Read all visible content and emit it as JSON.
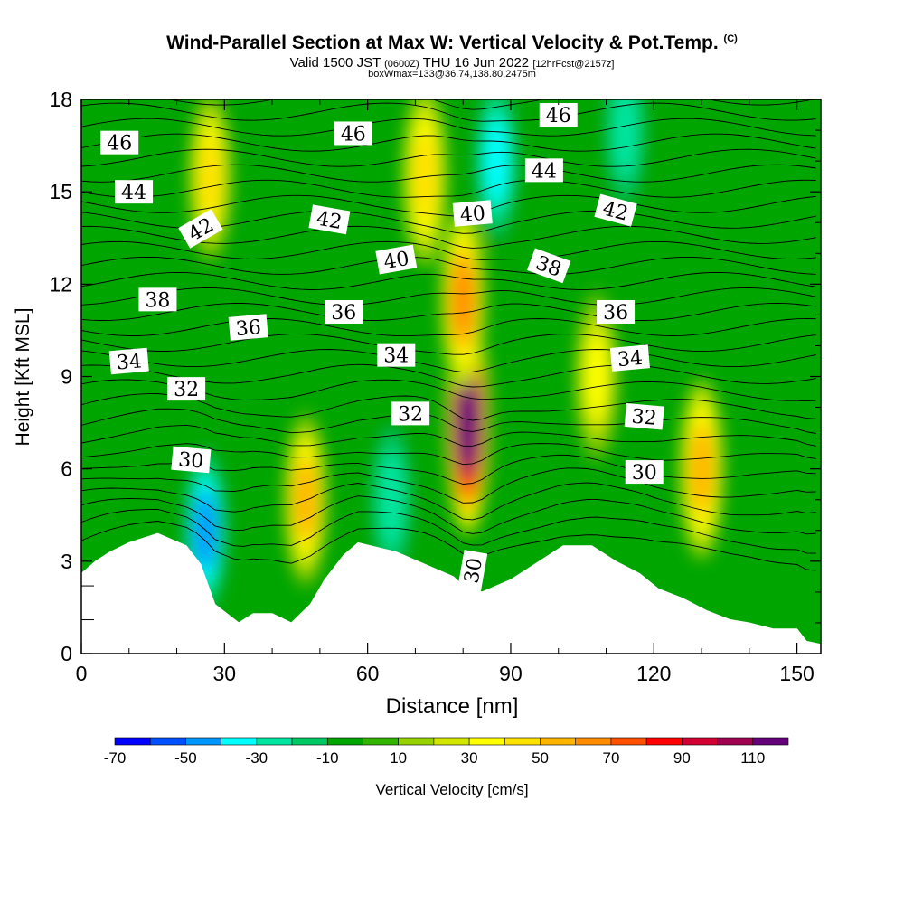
{
  "title": {
    "main": "Wind-Parallel Section at Max W: Vertical Velocity & Pot.Temp.",
    "copyright": "(C)",
    "valid": "Valid 1500 JST",
    "utc": "(0600Z)",
    "date": "THU 16 Jun 2022",
    "forecast": "[12hrFcst@2157z]",
    "box": "boxWmax=133@36.74,138.80,2475m"
  },
  "chart_data": {
    "type": "heatmap",
    "xlabel": "Distance [nm]",
    "ylabel": "Height [Kft MSL]",
    "xlim": [
      0,
      155
    ],
    "ylim": [
      0,
      18
    ],
    "xticks": [
      0,
      30,
      60,
      90,
      120,
      150
    ],
    "yticks": [
      0,
      3,
      6,
      9,
      12,
      15,
      18
    ],
    "colorbar": {
      "label": "Vertical Velocity [cm/s]",
      "ticks": [
        -70,
        -50,
        -30,
        -10,
        10,
        30,
        50,
        70,
        90,
        110
      ],
      "levels": [
        -70,
        -60,
        -50,
        -40,
        -30,
        -20,
        -10,
        0,
        10,
        20,
        30,
        40,
        50,
        60,
        70,
        80,
        90,
        100,
        110,
        120
      ],
      "colors": [
        "#0000ff",
        "#0050ff",
        "#0096ff",
        "#00ffff",
        "#00e6a0",
        "#00c864",
        "#00a500",
        "#32b400",
        "#96d200",
        "#d2e600",
        "#ffff00",
        "#ffe100",
        "#ffb400",
        "#ff8c00",
        "#ff5000",
        "#ff0000",
        "#d20032",
        "#a00050",
        "#640078"
      ]
    },
    "vertical_velocity_cores": [
      {
        "x": 81,
        "z": 7.5,
        "w": 133
      },
      {
        "x": 47,
        "z": 5.0,
        "w": 55
      },
      {
        "x": 130,
        "z": 6.0,
        "w": 50
      },
      {
        "x": 27,
        "z": 15.5,
        "w": 45
      },
      {
        "x": 72,
        "z": 15.5,
        "w": 40
      },
      {
        "x": 80,
        "z": 11.5,
        "w": 60
      },
      {
        "x": 108,
        "z": 9.0,
        "w": 35
      },
      {
        "x": 87,
        "z": 16.0,
        "w": -35
      },
      {
        "x": 26,
        "z": 4.0,
        "w": -45
      },
      {
        "x": 114,
        "z": 17.0,
        "w": -30
      },
      {
        "x": 65,
        "z": 5.0,
        "w": -25
      }
    ],
    "pot_temp_contour_labels": [
      "46",
      "46",
      "46",
      "44",
      "44",
      "42",
      "42",
      "42",
      "40",
      "40",
      "38",
      "38",
      "36",
      "36",
      "36",
      "34",
      "34",
      "34",
      "32",
      "32",
      "32",
      "30",
      "30",
      "30"
    ],
    "terrain_height_kft": [
      [
        0,
        2.6
      ],
      [
        3,
        3.0
      ],
      [
        6,
        3.3
      ],
      [
        10,
        3.6
      ],
      [
        16,
        3.9
      ],
      [
        22,
        3.5
      ],
      [
        25,
        2.9
      ],
      [
        28,
        1.6
      ],
      [
        33,
        1.0
      ],
      [
        36,
        1.3
      ],
      [
        40,
        1.3
      ],
      [
        44,
        1.0
      ],
      [
        48,
        1.6
      ],
      [
        51,
        2.4
      ],
      [
        55,
        3.2
      ],
      [
        58,
        3.6
      ],
      [
        66,
        3.3
      ],
      [
        72,
        2.9
      ],
      [
        78,
        2.5
      ],
      [
        80,
        2.2
      ],
      [
        84,
        2.0
      ],
      [
        90,
        2.4
      ],
      [
        95,
        2.9
      ],
      [
        101,
        3.5
      ],
      [
        107,
        3.5
      ],
      [
        112,
        3.0
      ],
      [
        117,
        2.6
      ],
      [
        121,
        2.1
      ],
      [
        126,
        1.8
      ],
      [
        131,
        1.4
      ],
      [
        136,
        1.1
      ],
      [
        140,
        1.0
      ],
      [
        145,
        0.8
      ],
      [
        150,
        0.8
      ],
      [
        152,
        0.4
      ],
      [
        155,
        0.3
      ]
    ]
  }
}
